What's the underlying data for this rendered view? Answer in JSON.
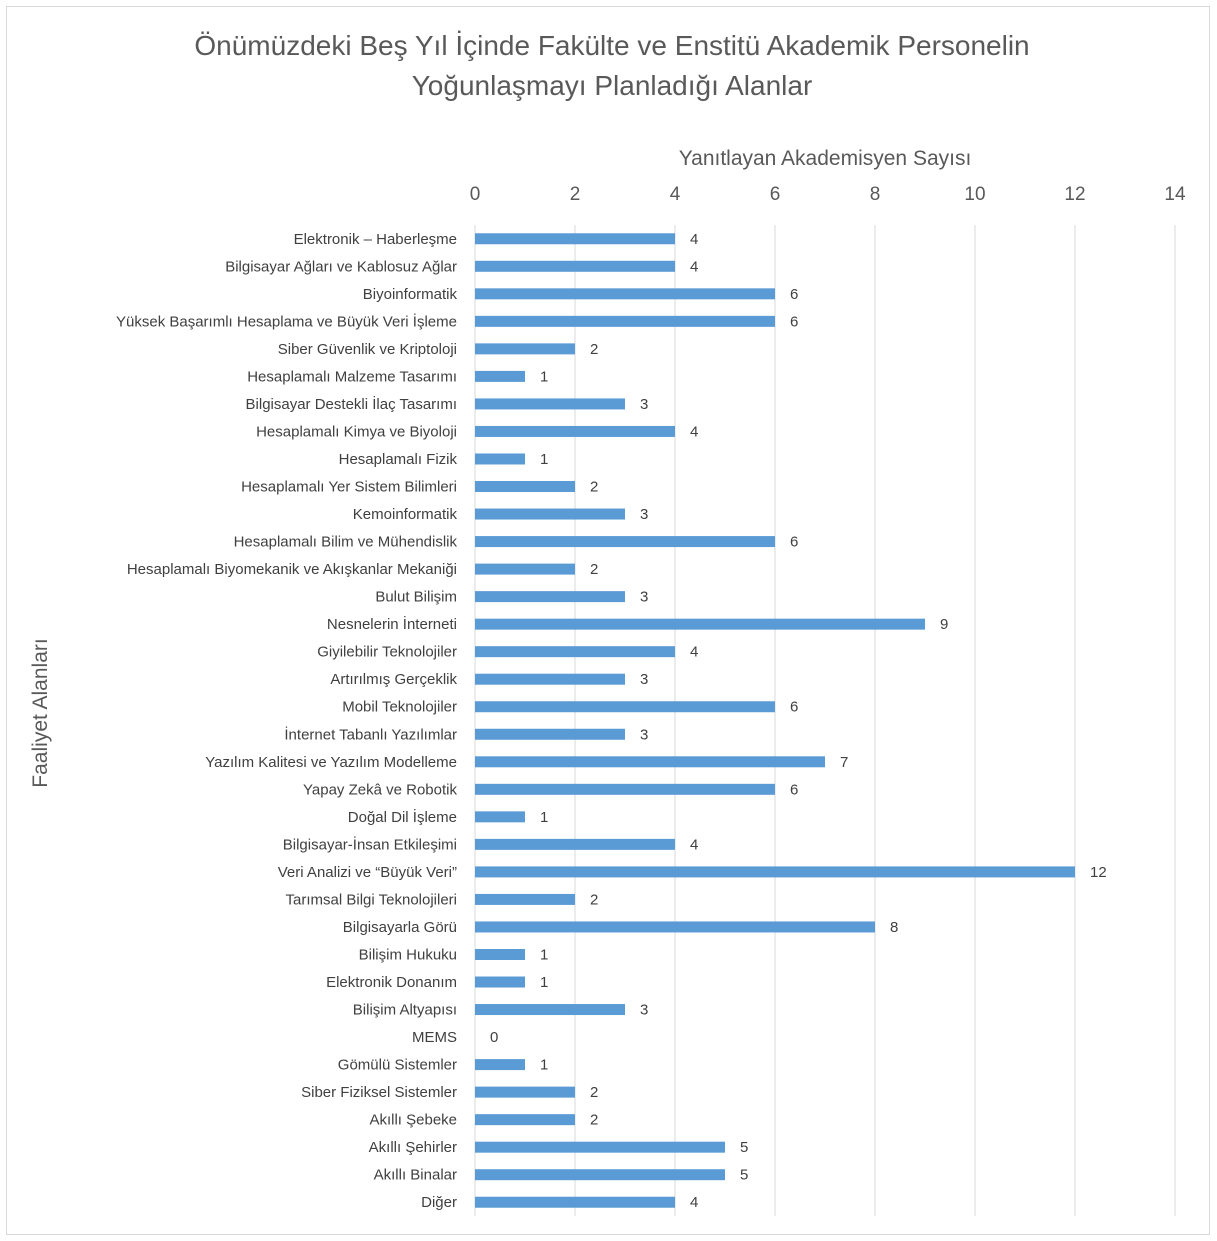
{
  "chart_data": {
    "type": "bar",
    "orientation": "horizontal",
    "title_lines": [
      "Önümüzdeki Beş Yıl İçinde Fakülte ve Enstitü Akademik Personelin",
      "Yoğunlaşmayı Planladığı Alanlar"
    ],
    "xlabel": "Yanıtlayan Akademisyen Sayısı",
    "ylabel": "Faaliyet Alanları",
    "xlim": [
      0,
      14
    ],
    "xticks": [
      0,
      2,
      4,
      6,
      8,
      10,
      12,
      14
    ],
    "x_axis_position": "top",
    "grid": true,
    "bar_color": "#5b9bd5",
    "categories": [
      "Elektronik – Haberleşme",
      "Bilgisayar Ağları ve Kablosuz Ağlar",
      "Biyoinformatik",
      "Yüksek Başarımlı Hesaplama ve Büyük Veri İşleme",
      "Siber Güvenlik ve Kriptoloji",
      "Hesaplamalı Malzeme Tasarımı",
      "Bilgisayar Destekli İlaç Tasarımı",
      "Hesaplamalı Kimya ve Biyoloji",
      "Hesaplamalı Fizik",
      "Hesaplamalı Yer Sistem Bilimleri",
      "Kemoinformatik",
      "Hesaplamalı Bilim ve Mühendislik",
      "Hesaplamalı Biyomekanik ve Akışkanlar Mekaniği",
      "Bulut Bilişim",
      "Nesnelerin İnterneti",
      "Giyilebilir Teknolojiler",
      "Artırılmış Gerçeklik",
      "Mobil Teknolojiler",
      "İnternet Tabanlı Yazılımlar",
      "Yazılım Kalitesi ve Yazılım Modelleme",
      "Yapay Zekâ ve Robotik",
      "Doğal Dil İşleme",
      "Bilgisayar-İnsan Etkileşimi",
      "Veri Analizi ve “Büyük Veri”",
      "Tarımsal Bilgi Teknolojileri",
      "Bilgisayarla Görü",
      "Bilişim Hukuku",
      "Elektronik Donanım",
      "Bilişim Altyapısı",
      "MEMS",
      "Gömülü Sistemler",
      "Siber Fiziksel Sistemler",
      "Akıllı Şebeke",
      "Akıllı Şehirler",
      "Akıllı Binalar",
      "Diğer"
    ],
    "values": [
      4,
      4,
      6,
      6,
      2,
      1,
      3,
      4,
      1,
      2,
      3,
      6,
      2,
      3,
      9,
      4,
      3,
      6,
      3,
      7,
      6,
      1,
      4,
      12,
      2,
      8,
      1,
      1,
      3,
      0,
      1,
      2,
      2,
      5,
      5,
      4
    ]
  }
}
